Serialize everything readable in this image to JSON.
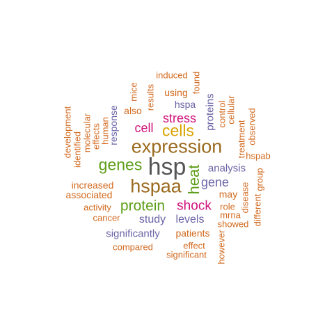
{
  "words": [
    {
      "text": "hsp",
      "color": "#555555"
    },
    {
      "text": "expression",
      "color": "#9A6A1E"
    },
    {
      "text": "hspaa",
      "color": "#9A6A1E"
    },
    {
      "text": "cells",
      "color": "#D9A400"
    },
    {
      "text": "genes",
      "color": "#5E9E1A"
    },
    {
      "text": "heat",
      "color": "#5E9E1A"
    },
    {
      "text": "protein",
      "color": "#5E9E1A"
    },
    {
      "text": "shock",
      "color": "#D0127C"
    },
    {
      "text": "stress",
      "color": "#D0127C"
    },
    {
      "text": "cell",
      "color": "#D0127C"
    },
    {
      "text": "gene",
      "color": "#6A63A6"
    },
    {
      "text": "analysis",
      "color": "#6A63A6"
    },
    {
      "text": "study",
      "color": "#6A63A6"
    },
    {
      "text": "levels",
      "color": "#6A63A6"
    },
    {
      "text": "significantly",
      "color": "#6A63A6"
    },
    {
      "text": "proteins",
      "color": "#6A63A6"
    },
    {
      "text": "hspa",
      "color": "#6A63A6"
    },
    {
      "text": "response",
      "color": "#6A63A6"
    },
    {
      "text": "patients",
      "color": "#D2691E"
    },
    {
      "text": "increased",
      "color": "#D2691E"
    },
    {
      "text": "associated",
      "color": "#D2691E"
    },
    {
      "text": "may",
      "color": "#D2691E"
    },
    {
      "text": "compared",
      "color": "#D2691E"
    },
    {
      "text": "using",
      "color": "#D2691E"
    },
    {
      "text": "also",
      "color": "#D2691E"
    },
    {
      "text": "results",
      "color": "#D2691E"
    },
    {
      "text": "induced",
      "color": "#D2691E"
    },
    {
      "text": "found",
      "color": "#D2691E"
    },
    {
      "text": "mice",
      "color": "#D2691E"
    },
    {
      "text": "human",
      "color": "#D2691E"
    },
    {
      "text": "effects",
      "color": "#D2691E"
    },
    {
      "text": "molecular",
      "color": "#D2691E"
    },
    {
      "text": "identified",
      "color": "#D2691E"
    },
    {
      "text": "development",
      "color": "#D2691E"
    },
    {
      "text": "control",
      "color": "#D2691E"
    },
    {
      "text": "cellular",
      "color": "#D2691E"
    },
    {
      "text": "observed",
      "color": "#D2691E"
    },
    {
      "text": "treatment",
      "color": "#D2691E"
    },
    {
      "text": "hspab",
      "color": "#D2691E"
    },
    {
      "text": "group",
      "color": "#D2691E"
    },
    {
      "text": "disease",
      "color": "#D2691E"
    },
    {
      "text": "different",
      "color": "#D2691E"
    },
    {
      "text": "role",
      "color": "#D2691E"
    },
    {
      "text": "mrna",
      "color": "#D2691E"
    },
    {
      "text": "showed",
      "color": "#D2691E"
    },
    {
      "text": "activity",
      "color": "#D2691E"
    },
    {
      "text": "cancer",
      "color": "#D2691E"
    },
    {
      "text": "effect",
      "color": "#D2691E"
    },
    {
      "text": "significant",
      "color": "#D2691E"
    },
    {
      "text": "however",
      "color": "#D2691E"
    }
  ]
}
